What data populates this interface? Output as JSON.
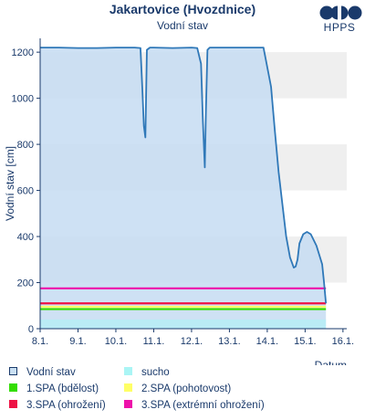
{
  "header": {
    "title": "Jakartovice (Hvozdnice)",
    "subtitle": "Vodní stav"
  },
  "logo": {
    "text": "HPPS"
  },
  "legend": {
    "items": [
      {
        "label": "Vodní stav",
        "color": "#c9dff3",
        "border": "#1a3a6b"
      },
      {
        "label": "sucho",
        "color": "#aaf5f5"
      },
      {
        "label": "1.SPA (bdělost)",
        "color": "#33dd00"
      },
      {
        "label": "2.SPA (pohotovost)",
        "color": "#ffff66"
      },
      {
        "label": "3.SPA (ohrožení)",
        "color": "#ee1144"
      },
      {
        "label": "3.SPA (extrémní ohrožení)",
        "color": "#ee11aa"
      }
    ]
  },
  "chart_data": {
    "type": "area",
    "title": "Jakartovice (Hvozdnice)",
    "subtitle": "Vodní stav",
    "xlabel": "Datum",
    "ylabel": "Vodní stav [cm]",
    "xlim": [
      8.0,
      16.1
    ],
    "ylim": [
      0,
      1260
    ],
    "x_ticks": [
      8,
      9,
      10,
      11,
      12,
      13,
      14,
      15,
      16
    ],
    "x_tick_labels": [
      "8.1.",
      "9.1.",
      "10.1.",
      "11.1.",
      "12.1.",
      "13.1.",
      "14.1.",
      "15.1.",
      "16.1."
    ],
    "y_ticks": [
      0,
      200,
      400,
      600,
      800,
      1000,
      1200
    ],
    "grid": "horizontal bands",
    "series": [
      {
        "name": "Vodní stav",
        "x": [
          8.0,
          8.5,
          9.0,
          9.5,
          10.0,
          10.5,
          10.65,
          10.7,
          10.74,
          10.78,
          10.82,
          10.9,
          11.0,
          11.5,
          12.0,
          12.15,
          12.25,
          12.3,
          12.35,
          12.38,
          12.42,
          12.48,
          12.6,
          13.0,
          13.5,
          13.9,
          14.1,
          14.2,
          14.3,
          14.4,
          14.5,
          14.6,
          14.7,
          14.75,
          14.8,
          14.85,
          14.95,
          15.05,
          15.15,
          15.3,
          15.45,
          15.5,
          15.55
        ],
        "values": [
          1220,
          1220,
          1218,
          1218,
          1220,
          1220,
          1218,
          1040,
          880,
          830,
          1210,
          1220,
          1220,
          1218,
          1220,
          1218,
          1150,
          900,
          700,
          950,
          1210,
          1220,
          1220,
          1220,
          1220,
          1220,
          1050,
          860,
          680,
          540,
          400,
          310,
          265,
          270,
          300,
          370,
          410,
          420,
          410,
          360,
          280,
          200,
          110
        ]
      }
    ],
    "levels": [
      {
        "name": "sucho",
        "value": 40,
        "color": "#aaf5f5"
      },
      {
        "name": "1.SPA (bdělost)",
        "value": 85,
        "color": "#33dd00"
      },
      {
        "name": "2.SPA (pohotovost)",
        "value": 95,
        "color": "#ffff66"
      },
      {
        "name": "3.SPA (ohrožení)",
        "value": 110,
        "color": "#ee1144"
      },
      {
        "name": "3.SPA (extrémní ohrožení)",
        "value": 175,
        "color": "#ee11aa"
      }
    ],
    "colors": {
      "area": "#c5dcf2",
      "line": "#2f78b8",
      "band": "#efefef",
      "axis": "#1a3a6b"
    }
  }
}
